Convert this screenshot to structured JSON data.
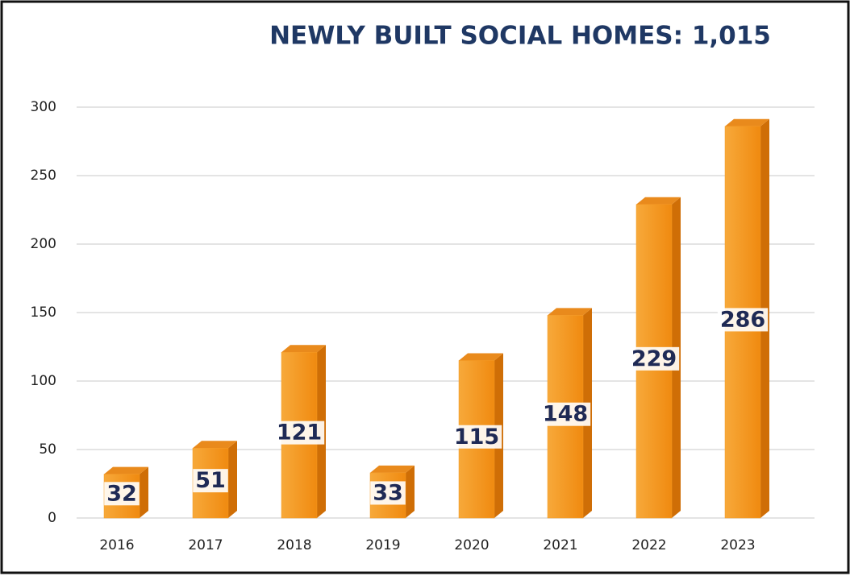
{
  "chart_data": {
    "type": "bar3d",
    "title": "NEWLY BUILT SOCIAL HOMES: 1,015",
    "categories": [
      "2016",
      "2017",
      "2018",
      "2019",
      "2020",
      "2021",
      "2022",
      "2023"
    ],
    "values": [
      32,
      51,
      121,
      33,
      115,
      148,
      229,
      286
    ],
    "color": "#f59a23",
    "ylim": [
      0,
      300
    ],
    "yticks": [
      0,
      50,
      100,
      150,
      200,
      250,
      300
    ],
    "grid": true
  }
}
